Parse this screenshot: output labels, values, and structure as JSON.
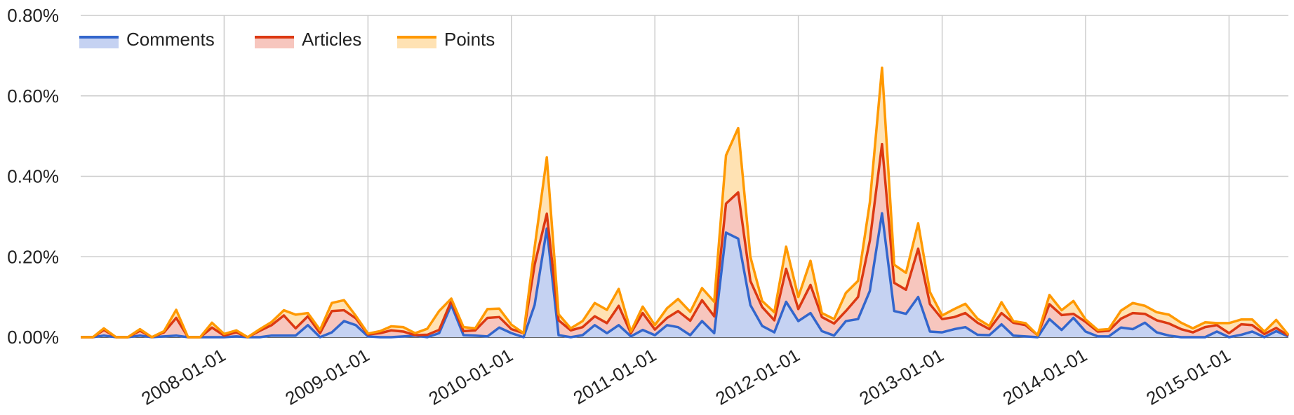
{
  "chart_data": {
    "type": "area",
    "stacked": true,
    "x": [
      "2007-01-01",
      "2007-02-01",
      "2007-03-01",
      "2007-04-01",
      "2007-05-01",
      "2007-06-01",
      "2007-07-01",
      "2007-08-01",
      "2007-09-01",
      "2007-10-01",
      "2007-11-01",
      "2007-12-01",
      "2008-01-01",
      "2008-02-01",
      "2008-03-01",
      "2008-04-01",
      "2008-05-01",
      "2008-06-01",
      "2008-07-01",
      "2008-08-01",
      "2008-09-01",
      "2008-10-01",
      "2008-11-01",
      "2008-12-01",
      "2009-01-01",
      "2009-02-01",
      "2009-03-01",
      "2009-04-01",
      "2009-05-01",
      "2009-06-01",
      "2009-07-01",
      "2009-08-01",
      "2009-09-01",
      "2009-10-01",
      "2009-11-01",
      "2009-12-01",
      "2010-01-01",
      "2010-02-01",
      "2010-03-01",
      "2010-04-01",
      "2010-05-01",
      "2010-06-01",
      "2010-07-01",
      "2010-08-01",
      "2010-09-01",
      "2010-10-01",
      "2010-11-01",
      "2010-12-01",
      "2011-01-01",
      "2011-02-01",
      "2011-03-01",
      "2011-04-01",
      "2011-05-01",
      "2011-06-01",
      "2011-07-01",
      "2011-08-01",
      "2011-09-01",
      "2011-10-01",
      "2011-11-01",
      "2011-12-01",
      "2012-01-01",
      "2012-02-01",
      "2012-03-01",
      "2012-04-01",
      "2012-05-01",
      "2012-06-01",
      "2012-07-01",
      "2012-08-01",
      "2012-09-01",
      "2012-10-01",
      "2012-11-01",
      "2012-12-01",
      "2013-01-01",
      "2013-02-01",
      "2013-03-01",
      "2013-04-01",
      "2013-05-01",
      "2013-06-01",
      "2013-07-01",
      "2013-08-01",
      "2013-09-01",
      "2013-10-01",
      "2013-11-01",
      "2013-12-01",
      "2014-01-01",
      "2014-02-01",
      "2014-03-01",
      "2014-04-01",
      "2014-05-01",
      "2014-06-01",
      "2014-07-01",
      "2014-08-01",
      "2014-09-01",
      "2014-10-01",
      "2014-11-01",
      "2014-12-01",
      "2015-01-01",
      "2015-02-01",
      "2015-03-01",
      "2015-04-01",
      "2015-05-01",
      "2015-06-01"
    ],
    "series": [
      {
        "name": "Comments",
        "color": "#3366cc",
        "fill": "#c5d2f2",
        "values": [
          0.0,
          0.0,
          0.004,
          0.0,
          0.0,
          0.004,
          0.0,
          0.002,
          0.004,
          0.0,
          0.0,
          0.0,
          0.0,
          0.002,
          0.0,
          0.0,
          0.004,
          0.004,
          0.004,
          0.03,
          0.0,
          0.012,
          0.04,
          0.03,
          0.002,
          0.0,
          0.0,
          0.002,
          0.004,
          0.0,
          0.01,
          0.08,
          0.005,
          0.004,
          0.002,
          0.024,
          0.01,
          0.0,
          0.08,
          0.27,
          0.005,
          0.0,
          0.005,
          0.03,
          0.01,
          0.03,
          0.002,
          0.018,
          0.005,
          0.03,
          0.025,
          0.005,
          0.04,
          0.01,
          0.26,
          0.245,
          0.08,
          0.028,
          0.012,
          0.088,
          0.04,
          0.06,
          0.015,
          0.004,
          0.04,
          0.045,
          0.115,
          0.308,
          0.065,
          0.058,
          0.1,
          0.014,
          0.012,
          0.02,
          0.025,
          0.006,
          0.005,
          0.032,
          0.004,
          0.002,
          0.0,
          0.045,
          0.018,
          0.048,
          0.014,
          0.002,
          0.002,
          0.024,
          0.02,
          0.036,
          0.012,
          0.004,
          0.0,
          0.0,
          0.0,
          0.014,
          0.0,
          0.006,
          0.014,
          0.0,
          0.015,
          0.002
        ]
      },
      {
        "name": "Articles",
        "color": "#dc3912",
        "fill": "#f7c6be",
        "values": [
          0.0,
          0.0,
          0.014,
          0.0,
          0.0,
          0.012,
          0.0,
          0.01,
          0.044,
          0.0,
          0.0,
          0.024,
          0.004,
          0.01,
          0.0,
          0.016,
          0.026,
          0.05,
          0.018,
          0.022,
          0.01,
          0.053,
          0.027,
          0.017,
          0.005,
          0.01,
          0.017,
          0.012,
          0.001,
          0.006,
          0.008,
          0.01,
          0.01,
          0.013,
          0.046,
          0.026,
          0.01,
          0.01,
          0.1,
          0.037,
          0.037,
          0.017,
          0.02,
          0.022,
          0.025,
          0.048,
          0.008,
          0.042,
          0.014,
          0.018,
          0.04,
          0.036,
          0.052,
          0.042,
          0.072,
          0.115,
          0.06,
          0.047,
          0.03,
          0.082,
          0.03,
          0.07,
          0.035,
          0.03,
          0.025,
          0.055,
          0.125,
          0.172,
          0.07,
          0.06,
          0.12,
          0.068,
          0.033,
          0.03,
          0.035,
          0.03,
          0.015,
          0.028,
          0.032,
          0.028,
          0.005,
          0.037,
          0.037,
          0.01,
          0.024,
          0.012,
          0.014,
          0.022,
          0.04,
          0.022,
          0.03,
          0.03,
          0.02,
          0.012,
          0.025,
          0.016,
          0.01,
          0.026,
          0.016,
          0.008,
          0.008,
          0.002
        ]
      },
      {
        "name": "Points",
        "color": "#ff9900",
        "fill": "#ffe2b3",
        "values": [
          0.0,
          0.0,
          0.004,
          0.0,
          0.0,
          0.004,
          0.0,
          0.003,
          0.02,
          0.0,
          0.0,
          0.012,
          0.004,
          0.005,
          0.0,
          0.004,
          0.008,
          0.013,
          0.034,
          0.008,
          0.008,
          0.02,
          0.025,
          0.006,
          0.002,
          0.005,
          0.01,
          0.011,
          0.005,
          0.015,
          0.047,
          0.006,
          0.01,
          0.005,
          0.022,
          0.021,
          0.011,
          0.0,
          0.043,
          0.14,
          0.015,
          0.005,
          0.015,
          0.033,
          0.033,
          0.042,
          0.004,
          0.016,
          0.011,
          0.024,
          0.03,
          0.022,
          0.03,
          0.036,
          0.12,
          0.16,
          0.06,
          0.015,
          0.02,
          0.055,
          0.03,
          0.06,
          0.01,
          0.011,
          0.045,
          0.04,
          0.095,
          0.19,
          0.045,
          0.042,
          0.063,
          0.03,
          0.009,
          0.02,
          0.023,
          0.01,
          0.008,
          0.027,
          0.004,
          0.005,
          0.0,
          0.023,
          0.012,
          0.032,
          0.006,
          0.004,
          0.004,
          0.02,
          0.025,
          0.02,
          0.02,
          0.022,
          0.016,
          0.01,
          0.012,
          0.005,
          0.025,
          0.012,
          0.014,
          0.006,
          0.02,
          0.002
        ]
      }
    ],
    "xticks": [
      "2008-01-01",
      "2009-01-01",
      "2010-01-01",
      "2011-01-01",
      "2012-01-01",
      "2013-01-01",
      "2014-01-01",
      "2015-01-01"
    ],
    "yticks": [
      "0.00%",
      "0.20%",
      "0.40%",
      "0.60%",
      "0.80%"
    ],
    "ytick_values": [
      0,
      0.2,
      0.4,
      0.6,
      0.8
    ],
    "ylim": [
      0,
      0.8
    ],
    "title": "",
    "xlabel": "",
    "ylabel": "",
    "grid": true,
    "legend": "top-left"
  }
}
